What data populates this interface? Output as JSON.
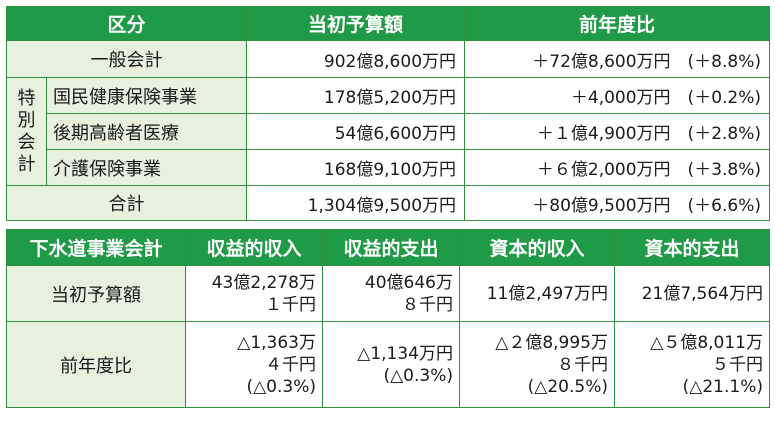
{
  "table1": {
    "headers": [
      "区分",
      "当初予算額",
      "前年度比"
    ],
    "row_general": {
      "label": "一般会計",
      "budget": "902億8,600万円",
      "change": "＋72億8,600万円　(＋8.8%)"
    },
    "special_group": [
      "特",
      "別",
      "会",
      "計"
    ],
    "special_rows": [
      {
        "label": "国民健康保険事業",
        "budget": "178億5,200万円",
        "change": "＋4,000万円　(＋0.2%)"
      },
      {
        "label": "後期高齢者医療",
        "budget": "54億6,600万円",
        "change": "＋１億4,900万円　(＋2.8%)"
      },
      {
        "label": "介護保険事業",
        "budget": "168億9,100万円",
        "change": "＋６億2,000万円　(＋3.8%)"
      }
    ],
    "row_total": {
      "label": "合計",
      "budget": "1,304億9,500万円",
      "change": "＋80億9,500万円　(＋6.6%)"
    }
  },
  "table2": {
    "headers": [
      "下水道事業会計",
      "収益的収入",
      "収益的支出",
      "資本的収入",
      "資本的支出"
    ],
    "row_budget": {
      "label": "当初予算額",
      "cells": [
        [
          "43億2,278万",
          "１千円"
        ],
        [
          "40億646万",
          "８千円"
        ],
        [
          "11億2,497万円"
        ],
        [
          "21億7,564万円"
        ]
      ]
    },
    "row_change": {
      "label": "前年度比",
      "cells": [
        [
          "△1,363万",
          "４千円",
          "(△0.3%)"
        ],
        [
          "△1,134万円",
          "(△0.3%)"
        ],
        [
          "△２億8,995万",
          "８千円",
          "(△20.5%)"
        ],
        [
          "△５億8,011万",
          "５千円",
          "(△21.1%)"
        ]
      ]
    }
  }
}
